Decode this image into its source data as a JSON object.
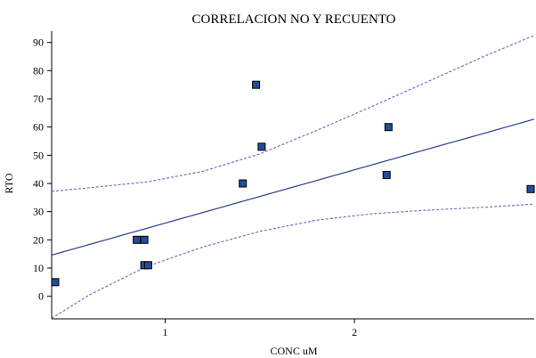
{
  "chart_data": {
    "type": "scatter",
    "title": "CORRELACION NO Y RECUENTO",
    "xlabel": "CONC uM",
    "ylabel": "RTO",
    "xlim": [
      0.4,
      2.95
    ],
    "ylim": [
      -8,
      94
    ],
    "x_ticks": [
      1,
      2
    ],
    "y_ticks": [
      0,
      10,
      20,
      30,
      40,
      50,
      60,
      70,
      80,
      90
    ],
    "points": [
      {
        "x": 0.4,
        "y": 5
      },
      {
        "x": 0.85,
        "y": 20
      },
      {
        "x": 0.89,
        "y": 20
      },
      {
        "x": 0.89,
        "y": 11
      },
      {
        "x": 0.91,
        "y": 11
      },
      {
        "x": 1.41,
        "y": 40
      },
      {
        "x": 1.48,
        "y": 75
      },
      {
        "x": 1.51,
        "y": 53
      },
      {
        "x": 2.17,
        "y": 43
      },
      {
        "x": 2.18,
        "y": 60
      },
      {
        "x": 2.95,
        "y": 38
      }
    ],
    "fit_line": {
      "x": [
        0.4,
        2.95
      ],
      "y": [
        14.6,
        62.8
      ]
    },
    "confidence_upper": {
      "x": [
        0.4,
        0.6,
        0.9,
        1.2,
        1.5,
        1.8,
        2.1,
        2.4,
        2.7,
        2.95
      ],
      "y": [
        37.2,
        38.5,
        40.5,
        44.3,
        50.5,
        58.8,
        67.5,
        76.5,
        85.5,
        92.5
      ]
    },
    "confidence_lower": {
      "x": [
        0.4,
        0.6,
        0.9,
        1.2,
        1.5,
        1.8,
        2.1,
        2.4,
        2.7,
        2.95
      ],
      "y": [
        -7.8,
        0.5,
        10.5,
        17.5,
        23.0,
        27.0,
        29.3,
        30.6,
        31.6,
        32.7
      ]
    },
    "colors": {
      "marker_fill": "#1f4e9a",
      "marker_stroke": "#000000",
      "fit_line": "#2b3f8f",
      "confidence": "#7a6fbf"
    },
    "grid": false,
    "legend": "none"
  }
}
